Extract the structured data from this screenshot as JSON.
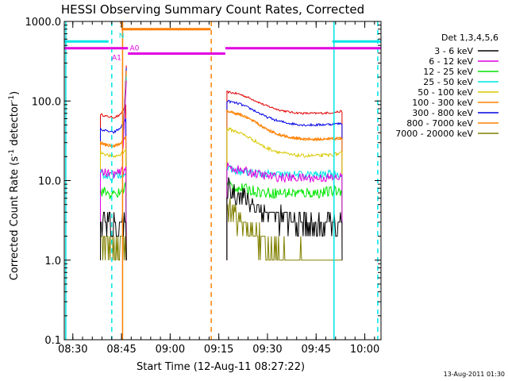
{
  "chart_data": {
    "type": "line",
    "title": "HESSI Observing Summary Count Rates, Corrected",
    "xlabel": "Start Time (12-Aug-11 08:27:22)",
    "ylabel_main": "Corrected Count Rate (s",
    "ylabel_sup1": "-1",
    "ylabel_mid": " detector",
    "ylabel_sup2": "-1",
    "ylabel_end": ")",
    "yscale": "log",
    "ylim": [
      0.1,
      1000
    ],
    "xlim": [
      "08:27:22",
      "10:05:00"
    ],
    "x_ticks": [
      "08:30",
      "08:45",
      "09:00",
      "09:15",
      "09:30",
      "09:45",
      "10:00"
    ],
    "y_ticks": [
      "0.1",
      "1.0",
      "10.0",
      "100.0",
      "1000.0"
    ],
    "grid": false,
    "legend_header": "Det 1,3,4,5,6",
    "legend_position": "right",
    "timestamp": "13-Aug-2011 01:30",
    "flags": [
      {
        "label": "S",
        "color": "#ff8000",
        "start": "08:45:00",
        "end": "09:12:30",
        "y": 800
      },
      {
        "label": "N",
        "color": "#00e5e5",
        "start": "08:27:22",
        "end": "08:41:00",
        "y": 560
      },
      {
        "label": "N",
        "color": "#00e5e5",
        "start": "09:50:00",
        "end": "10:05:00",
        "y": 560
      },
      {
        "label": "A0",
        "color": "#e000e0",
        "start": "08:27:22",
        "end": "08:47:00",
        "y": 460
      },
      {
        "label": "A0",
        "color": "#e000e0",
        "start": "08:47:00",
        "end": "09:17:00",
        "y": 395
      },
      {
        "label": "A0",
        "color": "#e000e0",
        "start": "09:17:00",
        "end": "10:05:00",
        "y": 460
      }
    ],
    "flag_text": [
      {
        "text": "S",
        "color": "#ff8000",
        "time": "08:45:00",
        "y": 860
      },
      {
        "text": "N",
        "color": "#00e5e5",
        "time": "08:45:00",
        "y": 620
      },
      {
        "text": "A1",
        "color": "#e000e0",
        "time": "08:43:30",
        "y": 330
      },
      {
        "text": "A0",
        "color": "#e000e0",
        "time": "08:49:00",
        "y": 430
      }
    ],
    "vlines": [
      {
        "time": "08:27:50",
        "color": "#00e5e5",
        "style": "solid"
      },
      {
        "time": "08:42:00",
        "color": "#00e5e5",
        "style": "dashed"
      },
      {
        "time": "08:45:20",
        "color": "#ff8000",
        "style": "solid"
      },
      {
        "time": "09:12:40",
        "color": "#ff8000",
        "style": "dashed"
      },
      {
        "time": "09:50:30",
        "color": "#00e5e5",
        "style": "solid"
      },
      {
        "time": "10:04:00",
        "color": "#00e5e5",
        "style": "dashed"
      }
    ],
    "segments": [
      {
        "start": "08:38:30",
        "end": "08:46:30"
      },
      {
        "start": "09:17:30",
        "end": "09:53:00"
      }
    ],
    "series": [
      {
        "name": "3 - 6 keV",
        "color": "#000000",
        "seg1": [
          3.0,
          3.0,
          2.7,
          3.0,
          2.4
        ],
        "seg2": [
          8.5,
          6.5,
          5.0,
          4.0,
          3.4,
          3.0,
          2.8,
          2.8,
          2.8,
          2.8
        ],
        "noise": 0.35
      },
      {
        "name": "6 - 12 keV",
        "color": "#e000e0",
        "seg1": [
          13.0,
          12.5,
          12.0,
          12.5,
          14.5
        ],
        "seg2": [
          15.0,
          13.5,
          12.5,
          11.5,
          11.0,
          10.8,
          10.8,
          10.8,
          10.8,
          11.0
        ],
        "noise": 0.13
      },
      {
        "name": "12 - 25 keV",
        "color": "#00e600",
        "seg1": [
          7.5,
          7.0,
          6.5,
          7.0,
          9.0
        ],
        "seg2": [
          9.0,
          8.0,
          7.5,
          7.0,
          7.0,
          7.0,
          7.0,
          7.0,
          7.2,
          7.5
        ],
        "noise": 0.16
      },
      {
        "name": "25 - 50 keV",
        "color": "#00e5e5",
        "seg1": [
          12.5,
          11.5,
          11.0,
          12.0,
          13.0
        ],
        "seg2": [
          14.0,
          13.0,
          12.5,
          12.0,
          11.8,
          11.8,
          11.8,
          11.8,
          12.0,
          12.0
        ],
        "noise": 0.12
      },
      {
        "name": "50 - 100 keV",
        "color": "#d8c800",
        "seg1": [
          23.0,
          21.0,
          20.0,
          21.0,
          25.0
        ],
        "seg2": [
          45.0,
          40.0,
          33.0,
          26.0,
          23.0,
          21.0,
          20.5,
          20.5,
          21.0,
          22.0
        ],
        "noise": 0.05
      },
      {
        "name": "100 - 300 keV",
        "color": "#ff8000",
        "seg1": [
          30.0,
          28.0,
          27.0,
          29.0,
          36.0
        ],
        "seg2": [
          75.0,
          68.0,
          57.0,
          45.0,
          38.0,
          35.0,
          33.0,
          33.0,
          33.5,
          34.0
        ],
        "noise": 0.04
      },
      {
        "name": "300 - 800 keV",
        "color": "#0000e6",
        "seg1": [
          44.0,
          42.0,
          40.0,
          45.0,
          60.0
        ],
        "seg2": [
          100.0,
          92.0,
          78.0,
          64.0,
          56.0,
          52.0,
          50.0,
          50.0,
          51.0,
          52.0
        ],
        "noise": 0.035
      },
      {
        "name": "800 - 7000 keV",
        "color": "#ff8000",
        "seg1": [
          30.0,
          28.0,
          27.0,
          29.0,
          36.0
        ],
        "seg2": [
          75.0,
          68.0,
          57.0,
          45.0,
          38.0,
          35.0,
          33.0,
          33.0,
          33.5,
          34.0
        ],
        "noise": 0.04
      },
      {
        "name": "7000 - 20000 keV",
        "color": "#808000",
        "seg1": [
          1.5,
          1.5,
          1.4,
          1.5,
          1.5
        ],
        "seg2": [
          4.5,
          3.2,
          2.2,
          1.5,
          1.2,
          1.1,
          1.0,
          1.0,
          1.0,
          1.0
        ],
        "noise": 0.4
      }
    ],
    "red_series": {
      "color": "#e00000",
      "seg1": [
        68.0,
        64.0,
        62.0,
        66.0,
        90.0
      ],
      "seg2": [
        130.0,
        122.0,
        105.0,
        88.0,
        78.0,
        72.0,
        70.0,
        70.0,
        71.0,
        74.0
      ],
      "noise": 0.03
    }
  }
}
